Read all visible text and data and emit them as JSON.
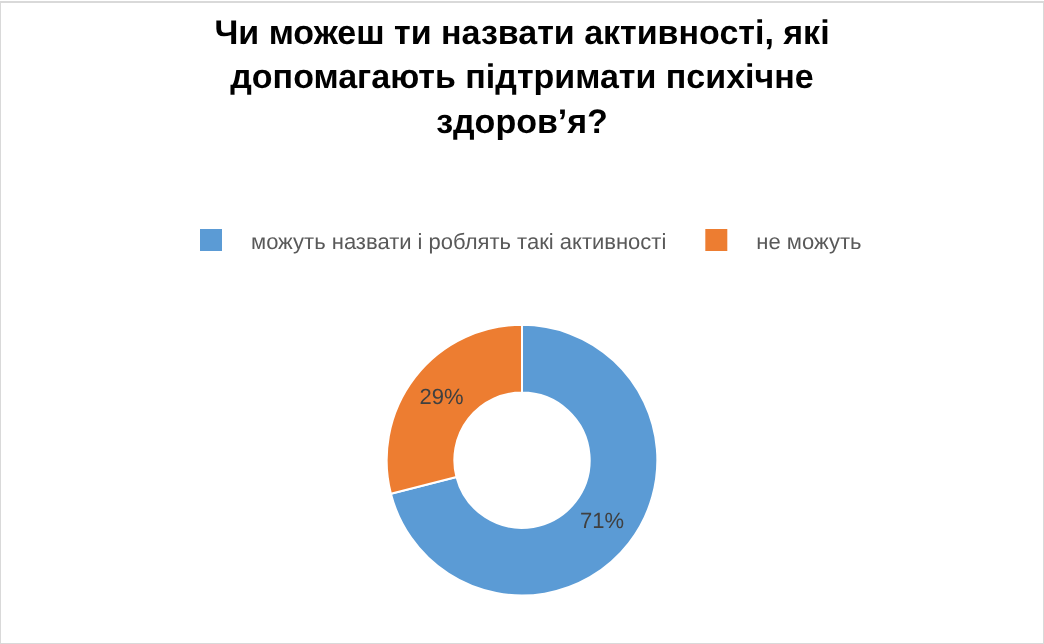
{
  "chart_data": {
    "type": "donut",
    "title": "Чи можеш ти назвати активності, які допомагають підтримати психічне здоров’я?",
    "categories": [
      "можуть назвати і роблять такі активності",
      "не можуть"
    ],
    "values": [
      71,
      29
    ],
    "colors": [
      "#5b9bd5",
      "#ed7d31"
    ],
    "value_labels": [
      "71%",
      "29%"
    ],
    "legend": "top"
  }
}
